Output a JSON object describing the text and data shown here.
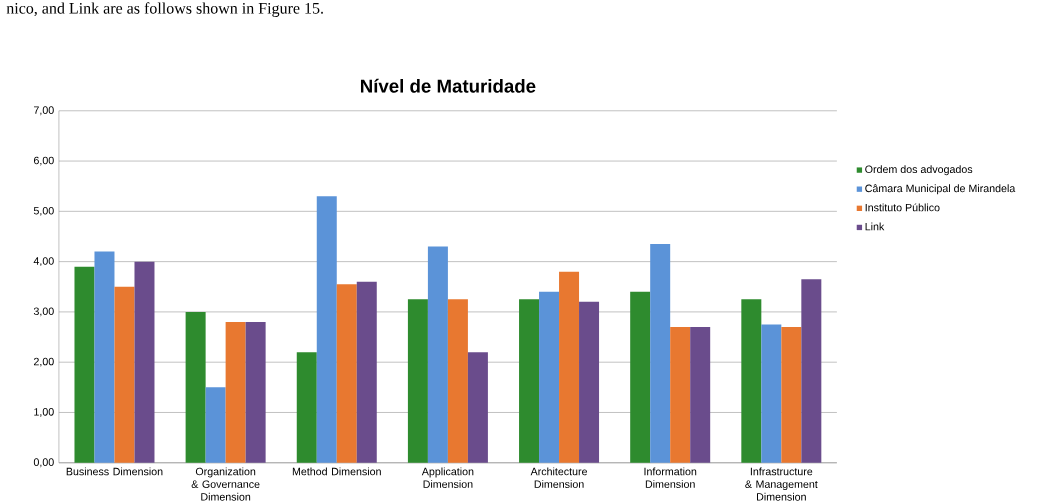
{
  "chart_data": {
    "type": "bar",
    "title": "Nível de Maturidade",
    "annotations": [
      "nico, and Link are as follows shown in Figure 15."
    ],
    "categories": [
      "Business Dimension",
      "Organization & Governance Dimension",
      "Method Dimension",
      "Application Dimension",
      "Architecture Dimension",
      "Information Dimension",
      "Infrastructure & Management Dimension"
    ],
    "series": [
      {
        "name": "Ordem dos advogados",
        "color": "#2e8b2e",
        "values": [
          3.9,
          3.0,
          2.2,
          3.25,
          3.25,
          3.4,
          3.25
        ]
      },
      {
        "name": "Câmara Municipal de Mirandela",
        "color": "#5b93d8",
        "values": [
          4.2,
          1.5,
          5.3,
          4.3,
          3.4,
          4.35,
          2.75
        ]
      },
      {
        "name": "Instituto Público",
        "color": "#e87830",
        "values": [
          3.5,
          2.8,
          3.55,
          3.25,
          3.8,
          2.7,
          2.7
        ]
      },
      {
        "name": "Link",
        "color": "#6a4c8c",
        "values": [
          4.0,
          2.8,
          3.6,
          2.2,
          3.2,
          2.7,
          3.65
        ]
      }
    ],
    "ylim": [
      0,
      7
    ],
    "yticks": [
      {
        "value": 0,
        "label": "0,00"
      },
      {
        "value": 1,
        "label": "1,00"
      },
      {
        "value": 2,
        "label": "2,00"
      },
      {
        "value": 3,
        "label": "3,00"
      },
      {
        "value": 4,
        "label": "4,00"
      },
      {
        "value": 5,
        "label": "5,00"
      },
      {
        "value": 6,
        "label": "6,00"
      },
      {
        "value": 7,
        "label": "7,00"
      }
    ],
    "grid": "y",
    "legend": "right"
  }
}
